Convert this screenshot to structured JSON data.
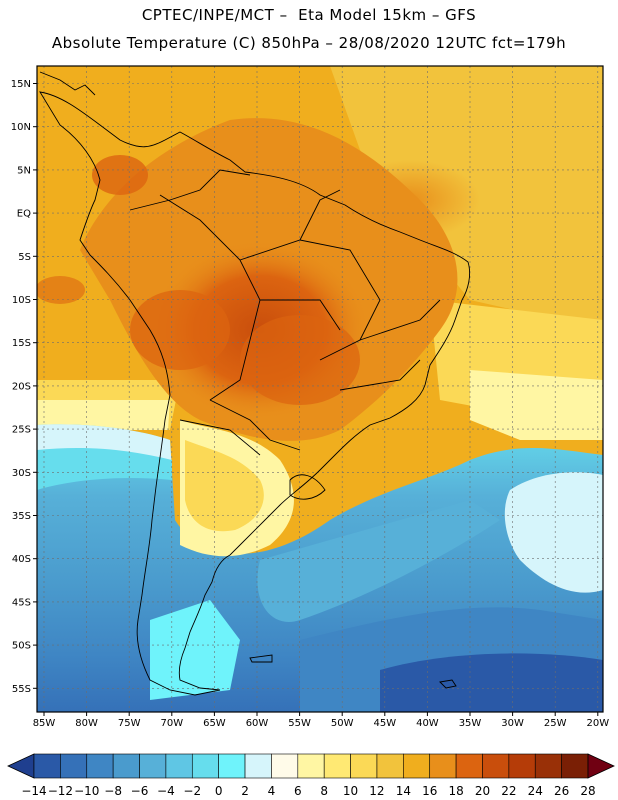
{
  "header": {
    "line1": "CPTEC/INPE/MCT –  Eta Model 15km – GFS",
    "line2": "Absolute Temperature (C) 850hPa – 28/08/2020 12UTC fct=179h"
  },
  "map": {
    "lat_labels": [
      "15N",
      "10N",
      "5N",
      "EQ",
      "5S",
      "10S",
      "15S",
      "20S",
      "25S",
      "30S",
      "35S",
      "40S",
      "45S",
      "50S",
      "55S"
    ],
    "lon_labels": [
      "85W",
      "80W",
      "75W",
      "70W",
      "65W",
      "60W",
      "55W",
      "50W",
      "45W",
      "40W",
      "35W",
      "30W",
      "25W",
      "20W"
    ]
  },
  "colorbar": {
    "labels": [
      "-14",
      "-12",
      "-10",
      "-8",
      "-6",
      "-4",
      "-2",
      "0",
      "2",
      "4",
      "6",
      "8",
      "10",
      "12",
      "14",
      "16",
      "18",
      "20",
      "22",
      "24",
      "26",
      "28"
    ],
    "colors": [
      "#1f3f8f",
      "#2a59a7",
      "#3571b8",
      "#3f86c4",
      "#4a9bcd",
      "#57b0d8",
      "#5fc6e4",
      "#66dded",
      "#6ff3fb",
      "#d6f5fb",
      "#fffbe9",
      "#fff6a3",
      "#ffe973",
      "#fbd956",
      "#f2c33c",
      "#f0ae1e",
      "#e88f1b",
      "#dc6410",
      "#c94e0c",
      "#b53c08",
      "#993007",
      "#7a1f05",
      "#700012"
    ]
  }
}
